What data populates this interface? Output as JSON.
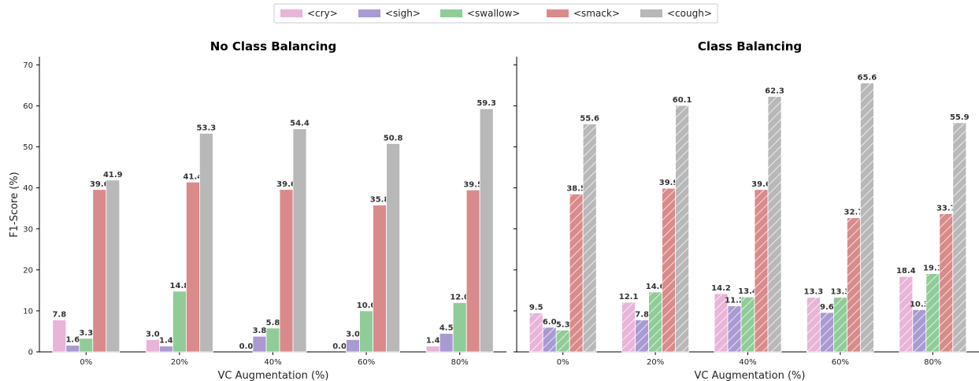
{
  "legend": {
    "items": [
      {
        "label": "<cry>",
        "color": "#e8b4d8"
      },
      {
        "label": "<sigh>",
        "color": "#a99ad1"
      },
      {
        "label": "<swallow>",
        "color": "#8fcc98"
      },
      {
        "label": "<smack>",
        "color": "#d98a8a"
      },
      {
        "label": "<cough>",
        "color": "#b8b8b8"
      }
    ]
  },
  "chart_data": [
    {
      "type": "bar",
      "title": "No Class Balancing",
      "xlabel": "VC Augmentation (%)",
      "ylabel": "F1-Score (%)",
      "ylim": [
        0,
        72
      ],
      "yticks": [
        "0",
        "10",
        "20",
        "30",
        "40",
        "50",
        "60",
        "70"
      ],
      "hatched": false,
      "categories": [
        "0%",
        "20%",
        "40%",
        "60%",
        "80%"
      ],
      "series": [
        {
          "name": "<cry>",
          "values": [
            7.8,
            3.0,
            0.0,
            0.0,
            1.4
          ],
          "labels": [
            "7.8",
            "3.0",
            "0.0",
            "0.0",
            "1.4"
          ]
        },
        {
          "name": "<sigh>",
          "values": [
            1.6,
            1.4,
            3.8,
            3.0,
            4.5
          ],
          "labels": [
            "1.6",
            "1.4",
            "3.8",
            "3.0",
            "4.5"
          ]
        },
        {
          "name": "<swallow>",
          "values": [
            3.3,
            14.8,
            5.8,
            10.0,
            12.0
          ],
          "labels": [
            "3.3",
            "14.8",
            "5.8",
            "10.0",
            "12.0"
          ]
        },
        {
          "name": "<smack>",
          "values": [
            39.6,
            41.4,
            39.6,
            35.8,
            39.5
          ],
          "labels": [
            "39.6",
            "41.4",
            "39.6",
            "35.8",
            "39.5"
          ]
        },
        {
          "name": "<cough>",
          "values": [
            41.9,
            53.3,
            54.4,
            50.8,
            59.3
          ],
          "labels": [
            "41.9",
            "53.3",
            "54.4",
            "50.8",
            "59.3"
          ]
        }
      ]
    },
    {
      "type": "bar",
      "title": "Class Balancing",
      "xlabel": "VC Augmentation (%)",
      "ylabel": "",
      "ylim": [
        0,
        72
      ],
      "yticks": [],
      "hatched": true,
      "categories": [
        "0%",
        "20%",
        "40%",
        "60%",
        "80%"
      ],
      "series": [
        {
          "name": "<cry>",
          "values": [
            9.5,
            12.1,
            14.2,
            13.3,
            18.4
          ],
          "labels": [
            "9.5",
            "12.1",
            "14.2",
            "13.3",
            "18.4"
          ]
        },
        {
          "name": "<sigh>",
          "values": [
            6.0,
            7.8,
            11.2,
            9.6,
            10.3
          ],
          "labels": [
            "6.0",
            "7.8",
            "11.2",
            "9.6",
            "10.3"
          ]
        },
        {
          "name": "<swallow>",
          "values": [
            5.3,
            14.6,
            13.4,
            13.3,
            19.1
          ],
          "labels": [
            "5.3",
            "14.6",
            "13.4",
            "13.3",
            "19.1"
          ]
        },
        {
          "name": "<smack>",
          "values": [
            38.5,
            39.9,
            39.6,
            32.7,
            33.7
          ],
          "labels": [
            "38.5",
            "39.9",
            "39.6",
            "32.7",
            "33.7"
          ]
        },
        {
          "name": "<cough>",
          "values": [
            55.6,
            60.1,
            62.3,
            65.6,
            55.9
          ],
          "labels": [
            "55.6",
            "60.1",
            "62.3",
            "65.6",
            "55.9"
          ]
        }
      ]
    }
  ]
}
